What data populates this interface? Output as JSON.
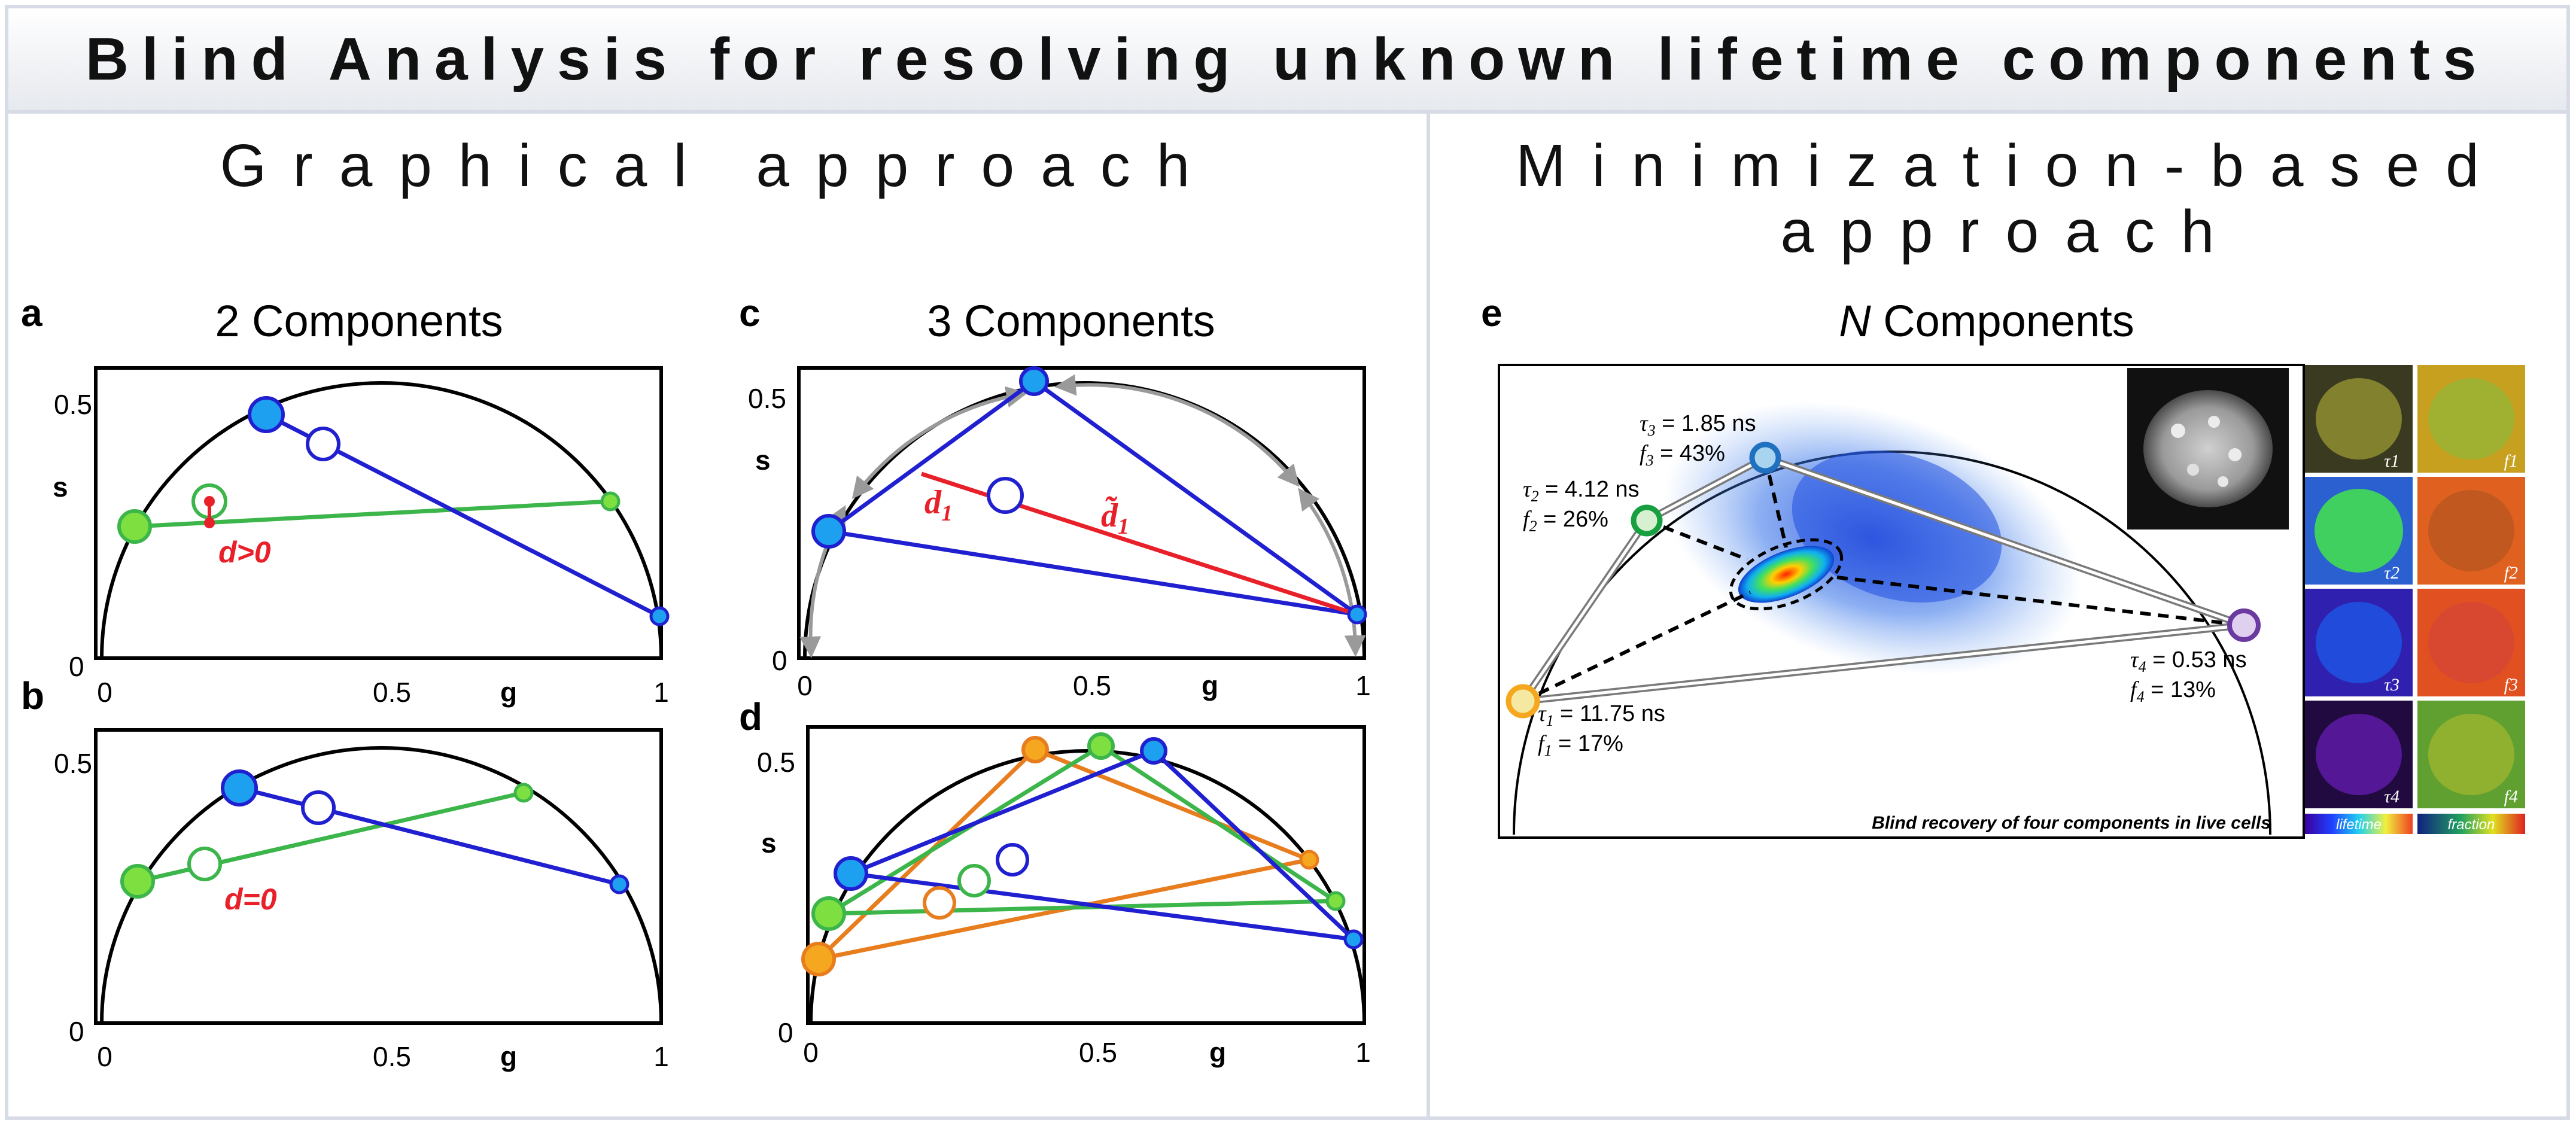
{
  "title": "Blind Analysis for resolving unknown lifetime components",
  "left_heading": "Graphical approach",
  "right_heading_line1": "Minimization-based",
  "right_heading_line2": "approach",
  "panel_a": {
    "letter": "a",
    "title": "2 Components",
    "annotation": "d>0"
  },
  "panel_b": {
    "letter": "b",
    "annotation": "d=0"
  },
  "panel_c": {
    "letter": "c",
    "title": "3 Components",
    "d1": "d",
    "d1_sub": "1",
    "d1_tilde": "d̃",
    "d1_tilde_sub": "1"
  },
  "panel_d": {
    "letter": "d"
  },
  "axes": {
    "s_label": "s",
    "g_label": "g",
    "tick_0": "0",
    "tick_05": "0.5",
    "tick_1": "1",
    "s_tick_05": "0.5",
    "s_tick_0": "0"
  },
  "panel_e": {
    "letter": "e",
    "title_italic": "N",
    "title_rest": " Components",
    "caption": "Blind recovery of four components in live cells",
    "components": [
      {
        "tau_sym": "τ",
        "tau_sub": "3",
        "tau_val": " = 1.85 ns",
        "f_sym": "f",
        "f_sub": "3",
        "f_val": " = 43%"
      },
      {
        "tau_sym": "τ",
        "tau_sub": "2",
        "tau_val": " = 4.12 ns",
        "f_sym": "f",
        "f_sub": "2",
        "f_val": " = 26%"
      },
      {
        "tau_sym": "τ",
        "tau_sub": "1",
        "tau_val": " = 11.75 ns",
        "f_sym": "f",
        "f_sub": "1",
        "f_val": " = 17%"
      },
      {
        "tau_sym": "τ",
        "tau_sub": "4",
        "tau_val": " = 0.53 ns",
        "f_sym": "f",
        "f_sub": "4",
        "f_val": " = 13%"
      }
    ],
    "thumb_tau": [
      "τ1",
      "τ2",
      "τ3",
      "τ4"
    ],
    "thumb_f": [
      "f1",
      "f2",
      "f3",
      "f4"
    ],
    "colorbar_lifetime": "lifetime",
    "colorbar_fraction": "fraction"
  },
  "colors": {
    "blue": "#2020d0",
    "green": "#3cb54a",
    "red": "#e8202a",
    "orange": "#e87d1e",
    "cyan_fill": "#1ea0f0",
    "lime_fill": "#7ee040",
    "orange_fill": "#f5a81f",
    "purple": "#6a3aa0"
  }
}
